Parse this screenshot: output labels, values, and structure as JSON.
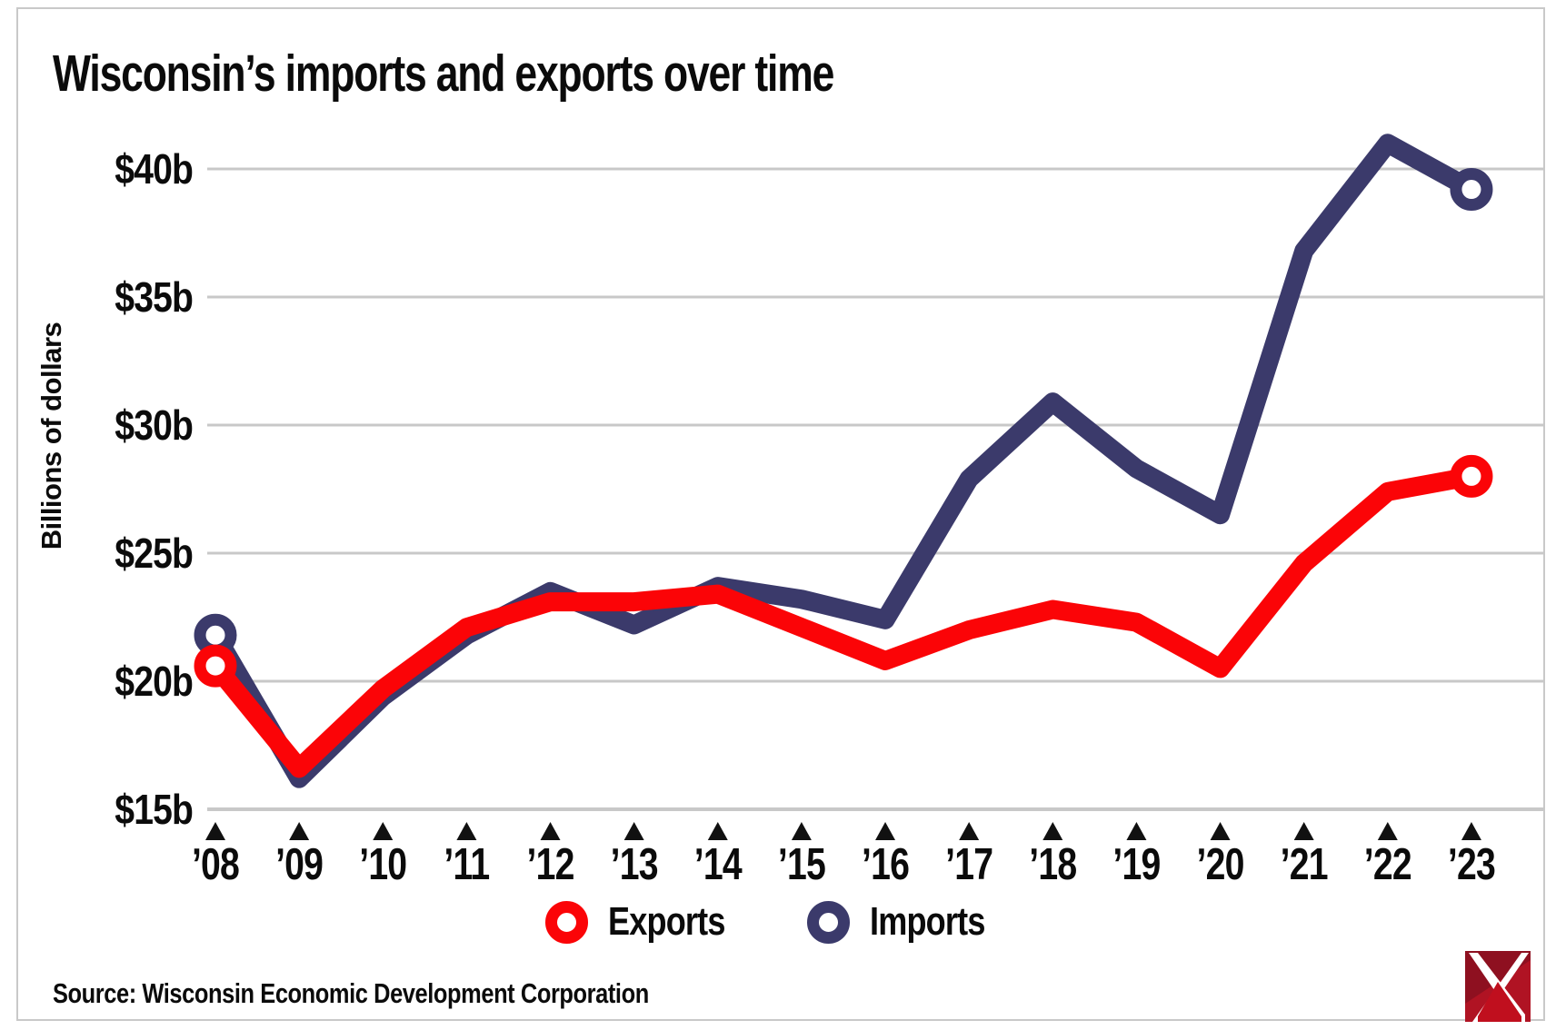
{
  "title": "Wisconsin’s imports and exports over time",
  "y_axis": {
    "label": "Billions of dollars",
    "ticks": [
      {
        "label": "$40b",
        "value": 40
      },
      {
        "label": "$35b",
        "value": 35
      },
      {
        "label": "$30b",
        "value": 30
      },
      {
        "label": "$25b",
        "value": 25
      },
      {
        "label": "$20b",
        "value": 20
      },
      {
        "label": "$15b",
        "value": 15
      }
    ]
  },
  "x_axis": {
    "labels": [
      "’08",
      "’09",
      "’10",
      "’11",
      "’12",
      "’13",
      "’14",
      "’15",
      "’16",
      "’17",
      "’18",
      "’19",
      "’20",
      "’21",
      "’22",
      "’23"
    ],
    "tick_marker": "triangle-up"
  },
  "legend": [
    {
      "label": "Exports",
      "color": "#fb0407"
    },
    {
      "label": "Imports",
      "color": "#3b3a6b"
    }
  ],
  "source": "Source: Wisconsin Economic Development Corporation",
  "colors": {
    "exports": "#fb0407",
    "imports": "#3b3a6b",
    "gridline": "#c8c8c8",
    "text": "#0b0b0b",
    "logo_red": "#b01323",
    "logo_dark_red": "#8e1020"
  },
  "chart_data": {
    "type": "line",
    "categories": [
      "’08",
      "’09",
      "’10",
      "’11",
      "’12",
      "’13",
      "’14",
      "’15",
      "’16",
      "’17",
      "’18",
      "’19",
      "’20",
      "’21",
      "’22",
      "’23"
    ],
    "series": [
      {
        "name": "Exports",
        "color": "#fb0407",
        "values": [
          20.6,
          16.6,
          19.7,
          22.1,
          23.1,
          23.1,
          23.4,
          22.1,
          20.8,
          22.0,
          22.8,
          22.3,
          20.5,
          24.6,
          27.4,
          28.0
        ]
      },
      {
        "name": "Imports",
        "color": "#3b3a6b",
        "values": [
          21.8,
          16.2,
          19.4,
          21.8,
          23.5,
          22.2,
          23.7,
          23.2,
          22.4,
          27.9,
          30.9,
          28.3,
          26.5,
          36.8,
          41.0,
          39.2
        ]
      }
    ],
    "title": "Wisconsin’s imports and exports over time",
    "xlabel": "",
    "ylabel": "Billions of dollars",
    "ylim": [
      15,
      43
    ],
    "yticks": [
      15,
      20,
      25,
      30,
      35,
      40
    ],
    "grid": true,
    "legend_position": "bottom",
    "marker_note": "open ring markers on first and last data points of each series"
  }
}
